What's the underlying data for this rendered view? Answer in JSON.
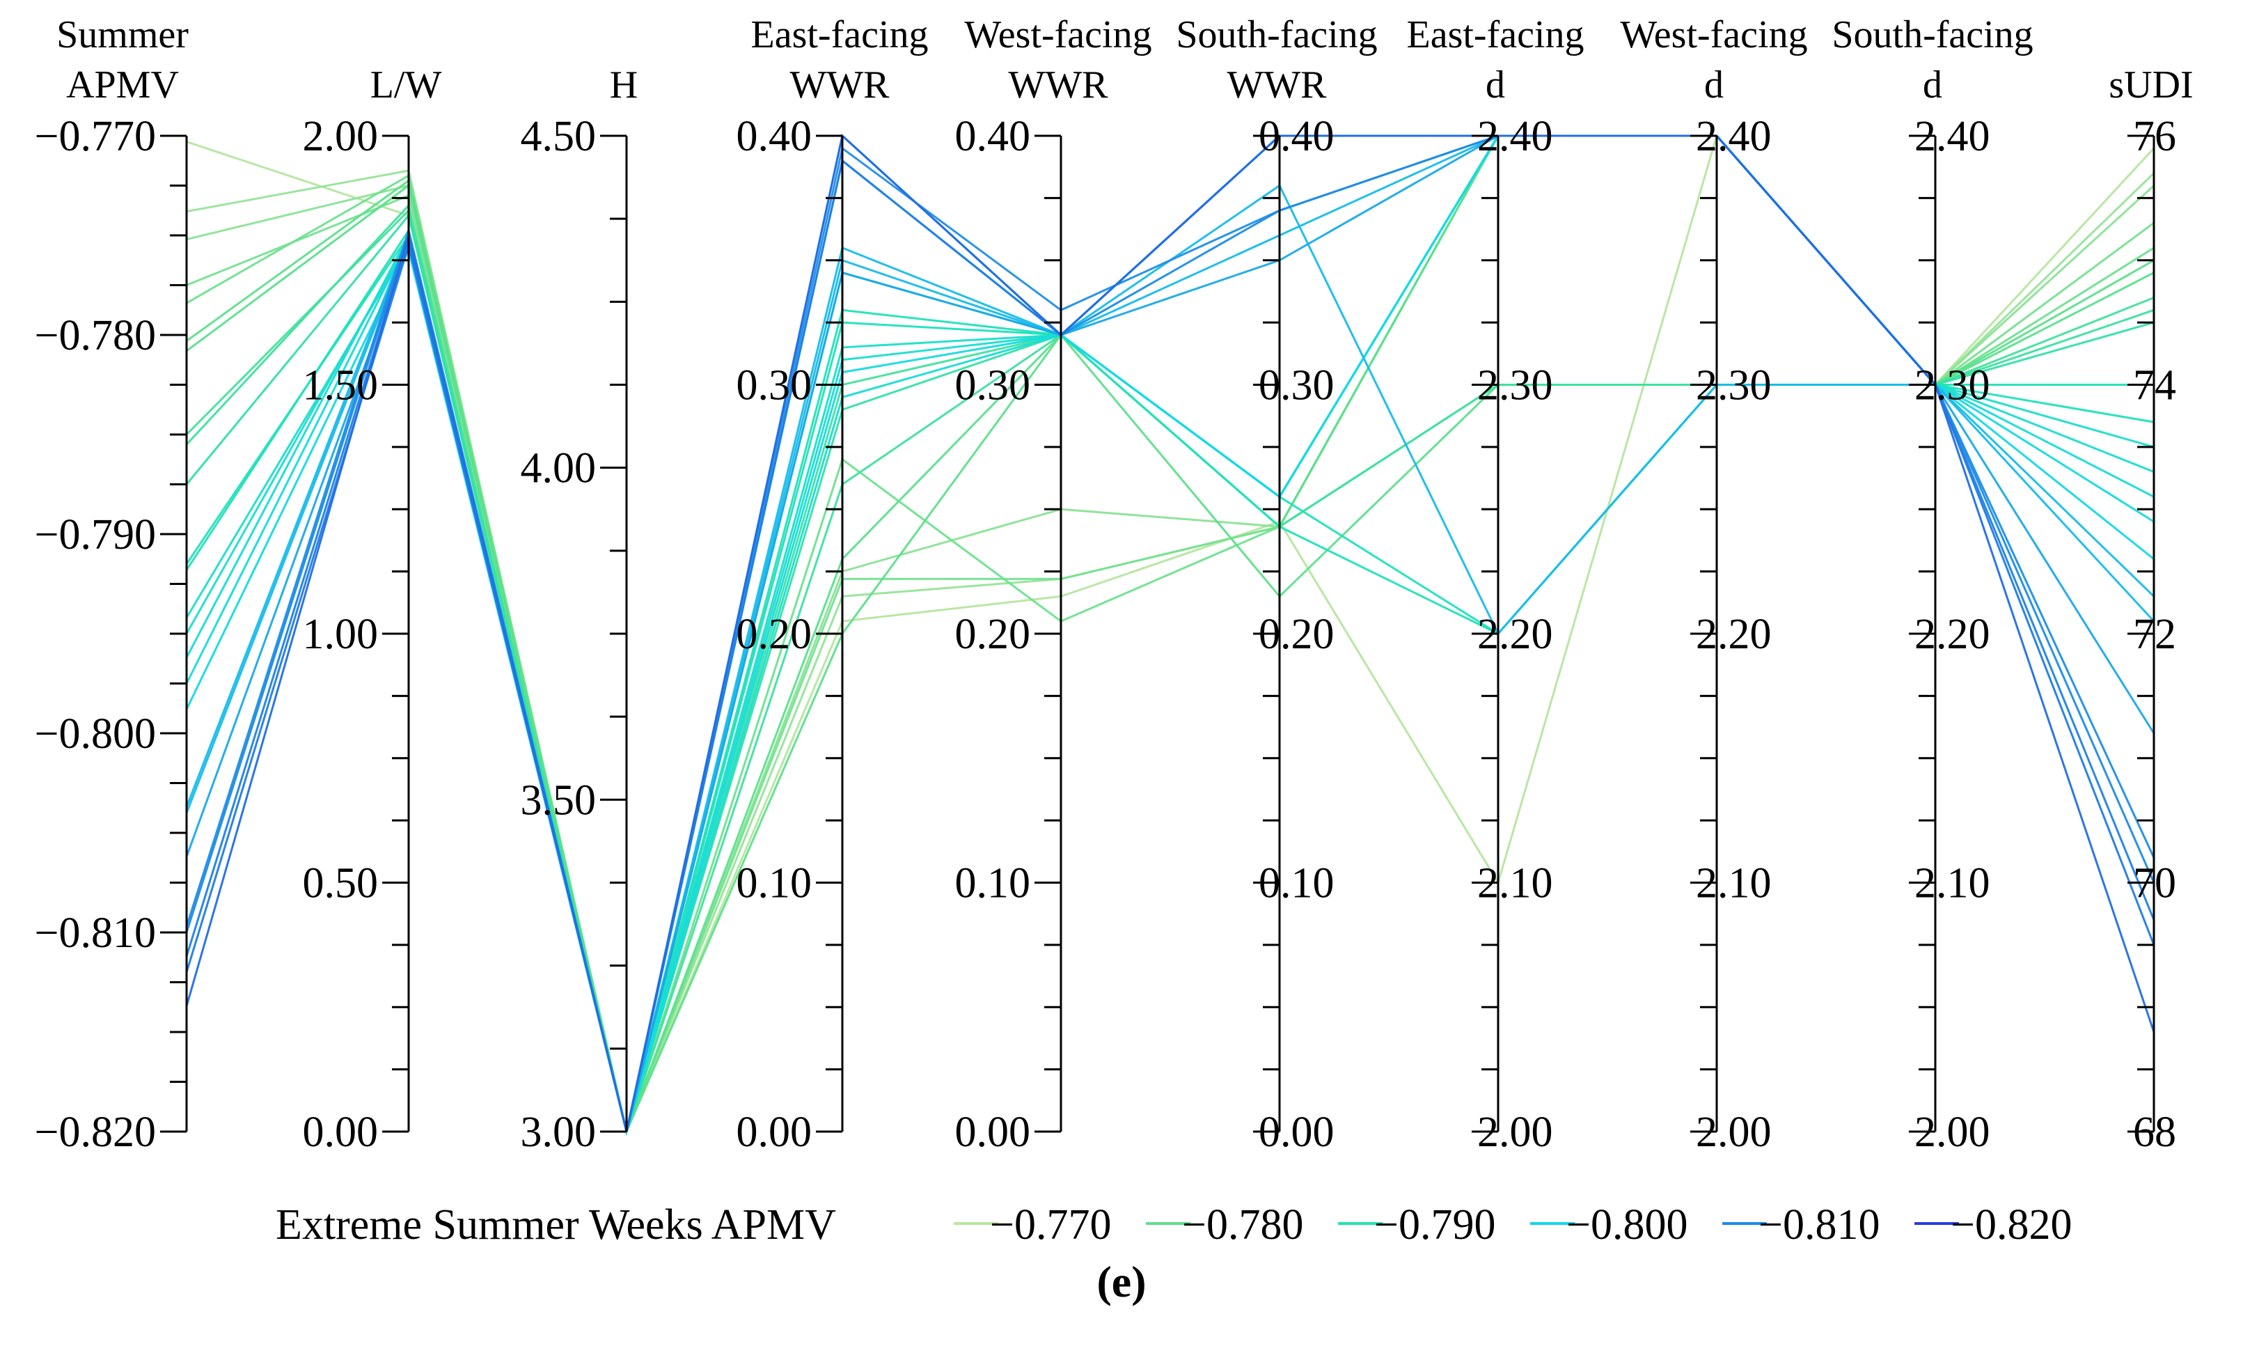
{
  "chart_data": {
    "type": "parallel_coordinates",
    "caption": "(e)",
    "axes": [
      {
        "key": "apmv",
        "title": [
          "Summer",
          "APMV"
        ],
        "range": [
          -0.82,
          -0.77
        ],
        "ticks": [
          -0.77,
          -0.78,
          -0.79,
          -0.8,
          -0.81,
          -0.82
        ],
        "tick_labels": [
          "−0.770",
          "−0.780",
          "−0.790",
          "−0.800",
          "−0.810",
          "−0.820"
        ],
        "label_side": "left"
      },
      {
        "key": "lw",
        "title": [
          "",
          "L/W"
        ],
        "range": [
          0,
          2
        ],
        "ticks": [
          2.0,
          1.5,
          1.0,
          0.5,
          0.0
        ],
        "tick_labels": [
          "2.00",
          "1.50",
          "1.00",
          "0.50",
          "0.00"
        ],
        "label_side": "left"
      },
      {
        "key": "h",
        "title": [
          "",
          "H"
        ],
        "range": [
          3.0,
          4.5
        ],
        "ticks": [
          4.5,
          4.0,
          3.5,
          3.0
        ],
        "tick_labels": [
          "4.50",
          "4.00",
          "3.50",
          "3.00"
        ],
        "label_side": "left"
      },
      {
        "key": "ewwr",
        "title": [
          "East-facing",
          "WWR"
        ],
        "range": [
          0,
          0.4
        ],
        "ticks": [
          0.4,
          0.3,
          0.2,
          0.1,
          0.0
        ],
        "tick_labels": [
          "0.40",
          "0.30",
          "0.20",
          "0.10",
          "0.00"
        ],
        "label_side": "left"
      },
      {
        "key": "wwwr",
        "title": [
          "West-facing",
          "WWR"
        ],
        "range": [
          0,
          0.4
        ],
        "ticks": [
          0.4,
          0.3,
          0.2,
          0.1,
          0.0
        ],
        "tick_labels": [
          "0.40",
          "0.30",
          "0.20",
          "0.10",
          "0.00"
        ],
        "label_side": "left"
      },
      {
        "key": "swwr",
        "title": [
          "South-facing",
          "WWR"
        ],
        "range": [
          0,
          0.4
        ],
        "ticks": [
          0.4,
          0.3,
          0.2,
          0.1,
          0.0
        ],
        "tick_labels": [
          "0.40",
          "0.30",
          "0.20",
          "0.10",
          "0.00"
        ],
        "label_side": "right"
      },
      {
        "key": "ed",
        "title": [
          "East-facing",
          "d"
        ],
        "range": [
          2.0,
          2.4
        ],
        "ticks": [
          2.4,
          2.3,
          2.2,
          2.1,
          2.0
        ],
        "tick_labels": [
          "2.40",
          "2.30",
          "2.20",
          "2.10",
          "2.00"
        ],
        "label_side": "right"
      },
      {
        "key": "wd",
        "title": [
          "West-facing",
          "d"
        ],
        "range": [
          2.0,
          2.4
        ],
        "ticks": [
          2.4,
          2.3,
          2.2,
          2.1,
          2.0
        ],
        "tick_labels": [
          "2.40",
          "2.30",
          "2.20",
          "2.10",
          "2.00"
        ],
        "label_side": "right"
      },
      {
        "key": "sd",
        "title": [
          "South-facing",
          "d"
        ],
        "range": [
          2.0,
          2.4
        ],
        "ticks": [
          2.4,
          2.3,
          2.2,
          2.1,
          2.0
        ],
        "tick_labels": [
          "2.40",
          "2.30",
          "2.20",
          "2.10",
          "2.00"
        ],
        "label_side": "right"
      },
      {
        "key": "sudi",
        "title": [
          "",
          "sUDI"
        ],
        "range": [
          68,
          76
        ],
        "ticks": [
          76,
          74,
          72,
          70,
          68
        ],
        "tick_labels": [
          "76",
          "74",
          "72",
          "70",
          "68"
        ],
        "label_side": "right"
      }
    ],
    "color_scale": {
      "domain": [
        -0.77,
        -0.78,
        -0.79,
        -0.8,
        -0.81,
        -0.82
      ],
      "colors": [
        "#b8e6a0",
        "#5fe08a",
        "#22e3b0",
        "#12d8ee",
        "#1e8ce6",
        "#2a3ae0"
      ]
    },
    "legend": {
      "title": "Extreme Summer Weeks APMV",
      "entries": [
        "−0.770",
        "−0.780",
        "−0.790",
        "−0.800",
        "−0.810",
        "−0.820"
      ],
      "placement": "bottom"
    },
    "lines": [
      {
        "apmv": -0.7703,
        "lw": 1.84,
        "h": 3.0,
        "ewwr": 0.205,
        "wwwr": 0.215,
        "swwr": 0.245,
        "ed": 2.1,
        "wd": 2.4,
        "sd": 2.3,
        "sudi": 75.9
      },
      {
        "apmv": -0.7738,
        "lw": 1.93,
        "h": 3.0,
        "ewwr": 0.215,
        "wwwr": 0.222,
        "swwr": 0.243,
        "ed": 2.4,
        "wd": 2.4,
        "sd": 2.3,
        "sudi": 75.7
      },
      {
        "apmv": -0.7752,
        "lw": 1.9,
        "h": 3.0,
        "ewwr": 0.225,
        "wwwr": 0.25,
        "swwr": 0.243,
        "ed": 2.4,
        "wd": 2.4,
        "sd": 2.3,
        "sudi": 75.6
      },
      {
        "apmv": -0.7775,
        "lw": 1.88,
        "h": 3.0,
        "ewwr": 0.222,
        "wwwr": 0.222,
        "swwr": 0.243,
        "ed": 2.4,
        "wd": 2.4,
        "sd": 2.3,
        "sudi": 75.3
      },
      {
        "apmv": -0.7784,
        "lw": 1.92,
        "h": 3.0,
        "ewwr": 0.27,
        "wwwr": 0.205,
        "swwr": 0.243,
        "ed": 2.4,
        "wd": 2.4,
        "sd": 2.3,
        "sudi": 75.1
      },
      {
        "apmv": -0.7803,
        "lw": 1.91,
        "h": 3.0,
        "ewwr": 0.2,
        "wwwr": 0.32,
        "swwr": 0.215,
        "ed": 2.3,
        "wd": 2.3,
        "sd": 2.3,
        "sudi": 75.0
      },
      {
        "apmv": -0.7808,
        "lw": 1.9,
        "h": 3.0,
        "ewwr": 0.23,
        "wwwr": 0.32,
        "swwr": 0.243,
        "ed": 2.4,
        "wd": 2.4,
        "sd": 2.3,
        "sudi": 74.9
      },
      {
        "apmv": -0.785,
        "lw": 1.85,
        "h": 3.0,
        "ewwr": 0.3,
        "wwwr": 0.32,
        "swwr": 0.243,
        "ed": 2.3,
        "wd": 2.3,
        "sd": 2.3,
        "sudi": 74.7
      },
      {
        "apmv": -0.7855,
        "lw": 1.86,
        "h": 3.0,
        "ewwr": 0.26,
        "wwwr": 0.32,
        "swwr": 0.243,
        "ed": 2.3,
        "wd": 2.3,
        "sd": 2.3,
        "sudi": 74.6
      },
      {
        "apmv": -0.7875,
        "lw": 1.84,
        "h": 3.0,
        "ewwr": 0.29,
        "wwwr": 0.32,
        "swwr": 0.255,
        "ed": 2.4,
        "wd": 2.4,
        "sd": 2.3,
        "sudi": 74.5
      },
      {
        "apmv": -0.7915,
        "lw": 1.8,
        "h": 3.0,
        "ewwr": 0.33,
        "wwwr": 0.32,
        "swwr": 0.243,
        "ed": 2.2,
        "wd": 2.3,
        "sd": 2.3,
        "sudi": 74.0
      },
      {
        "apmv": -0.7918,
        "lw": 1.81,
        "h": 3.0,
        "ewwr": 0.325,
        "wwwr": 0.32,
        "swwr": 0.255,
        "ed": 2.2,
        "wd": 2.3,
        "sd": 2.3,
        "sudi": 73.7
      },
      {
        "apmv": -0.7942,
        "lw": 1.78,
        "h": 3.0,
        "ewwr": 0.315,
        "wwwr": 0.32,
        "swwr": 0.255,
        "ed": 2.4,
        "wd": 2.4,
        "sd": 2.3,
        "sudi": 73.5
      },
      {
        "apmv": -0.795,
        "lw": 1.79,
        "h": 3.0,
        "ewwr": 0.31,
        "wwwr": 0.32,
        "swwr": 0.255,
        "ed": 2.4,
        "wd": 2.4,
        "sd": 2.3,
        "sudi": 73.3
      },
      {
        "apmv": -0.7962,
        "lw": 1.8,
        "h": 3.0,
        "ewwr": 0.295,
        "wwwr": 0.32,
        "swwr": 0.255,
        "ed": 2.4,
        "wd": 2.4,
        "sd": 2.3,
        "sudi": 73.1
      },
      {
        "apmv": -0.7975,
        "lw": 1.79,
        "h": 3.0,
        "ewwr": 0.305,
        "wwwr": 0.32,
        "swwr": 0.255,
        "ed": 2.4,
        "wd": 2.4,
        "sd": 2.3,
        "sudi": 72.9
      },
      {
        "apmv": -0.7988,
        "lw": 1.77,
        "h": 3.0,
        "ewwr": 0.345,
        "wwwr": 0.32,
        "swwr": 0.255,
        "ed": 2.4,
        "wd": 2.4,
        "sd": 2.3,
        "sudi": 72.6
      },
      {
        "apmv": -0.8037,
        "lw": 1.8,
        "h": 3.0,
        "ewwr": 0.355,
        "wwwr": 0.32,
        "swwr": 0.38,
        "ed": 2.2,
        "wd": 2.3,
        "sd": 2.3,
        "sudi": 72.3
      },
      {
        "apmv": -0.804,
        "lw": 1.79,
        "h": 3.0,
        "ewwr": 0.35,
        "wwwr": 0.32,
        "swwr": 0.36,
        "ed": 2.4,
        "wd": 2.4,
        "sd": 2.3,
        "sudi": 72.1
      },
      {
        "apmv": -0.8062,
        "lw": 1.78,
        "h": 3.0,
        "ewwr": 0.345,
        "wwwr": 0.32,
        "swwr": 0.35,
        "ed": 2.4,
        "wd": 2.4,
        "sd": 2.3,
        "sudi": 71.2
      },
      {
        "apmv": -0.8097,
        "lw": 1.81,
        "h": 3.0,
        "ewwr": 0.395,
        "wwwr": 0.33,
        "swwr": 0.37,
        "ed": 2.4,
        "wd": 2.4,
        "sd": 2.3,
        "sudi": 70.2
      },
      {
        "apmv": -0.81,
        "lw": 1.8,
        "h": 3.0,
        "ewwr": 0.39,
        "wwwr": 0.32,
        "swwr": 0.37,
        "ed": 2.4,
        "wd": 2.4,
        "sd": 2.3,
        "sudi": 70.0
      },
      {
        "apmv": -0.8112,
        "lw": 1.79,
        "h": 3.0,
        "ewwr": 0.39,
        "wwwr": 0.32,
        "swwr": 0.4,
        "ed": 2.4,
        "wd": 2.4,
        "sd": 2.3,
        "sudi": 69.7
      },
      {
        "apmv": -0.812,
        "lw": 1.78,
        "h": 3.0,
        "ewwr": 0.4,
        "wwwr": 0.32,
        "swwr": 0.4,
        "ed": 2.4,
        "wd": 2.4,
        "sd": 2.3,
        "sudi": 69.5
      },
      {
        "apmv": -0.8137,
        "lw": 1.8,
        "h": 3.0,
        "ewwr": 0.4,
        "wwwr": 0.32,
        "swwr": 0.4,
        "ed": 2.4,
        "wd": 2.4,
        "sd": 2.3,
        "sudi": 68.8
      }
    ]
  }
}
